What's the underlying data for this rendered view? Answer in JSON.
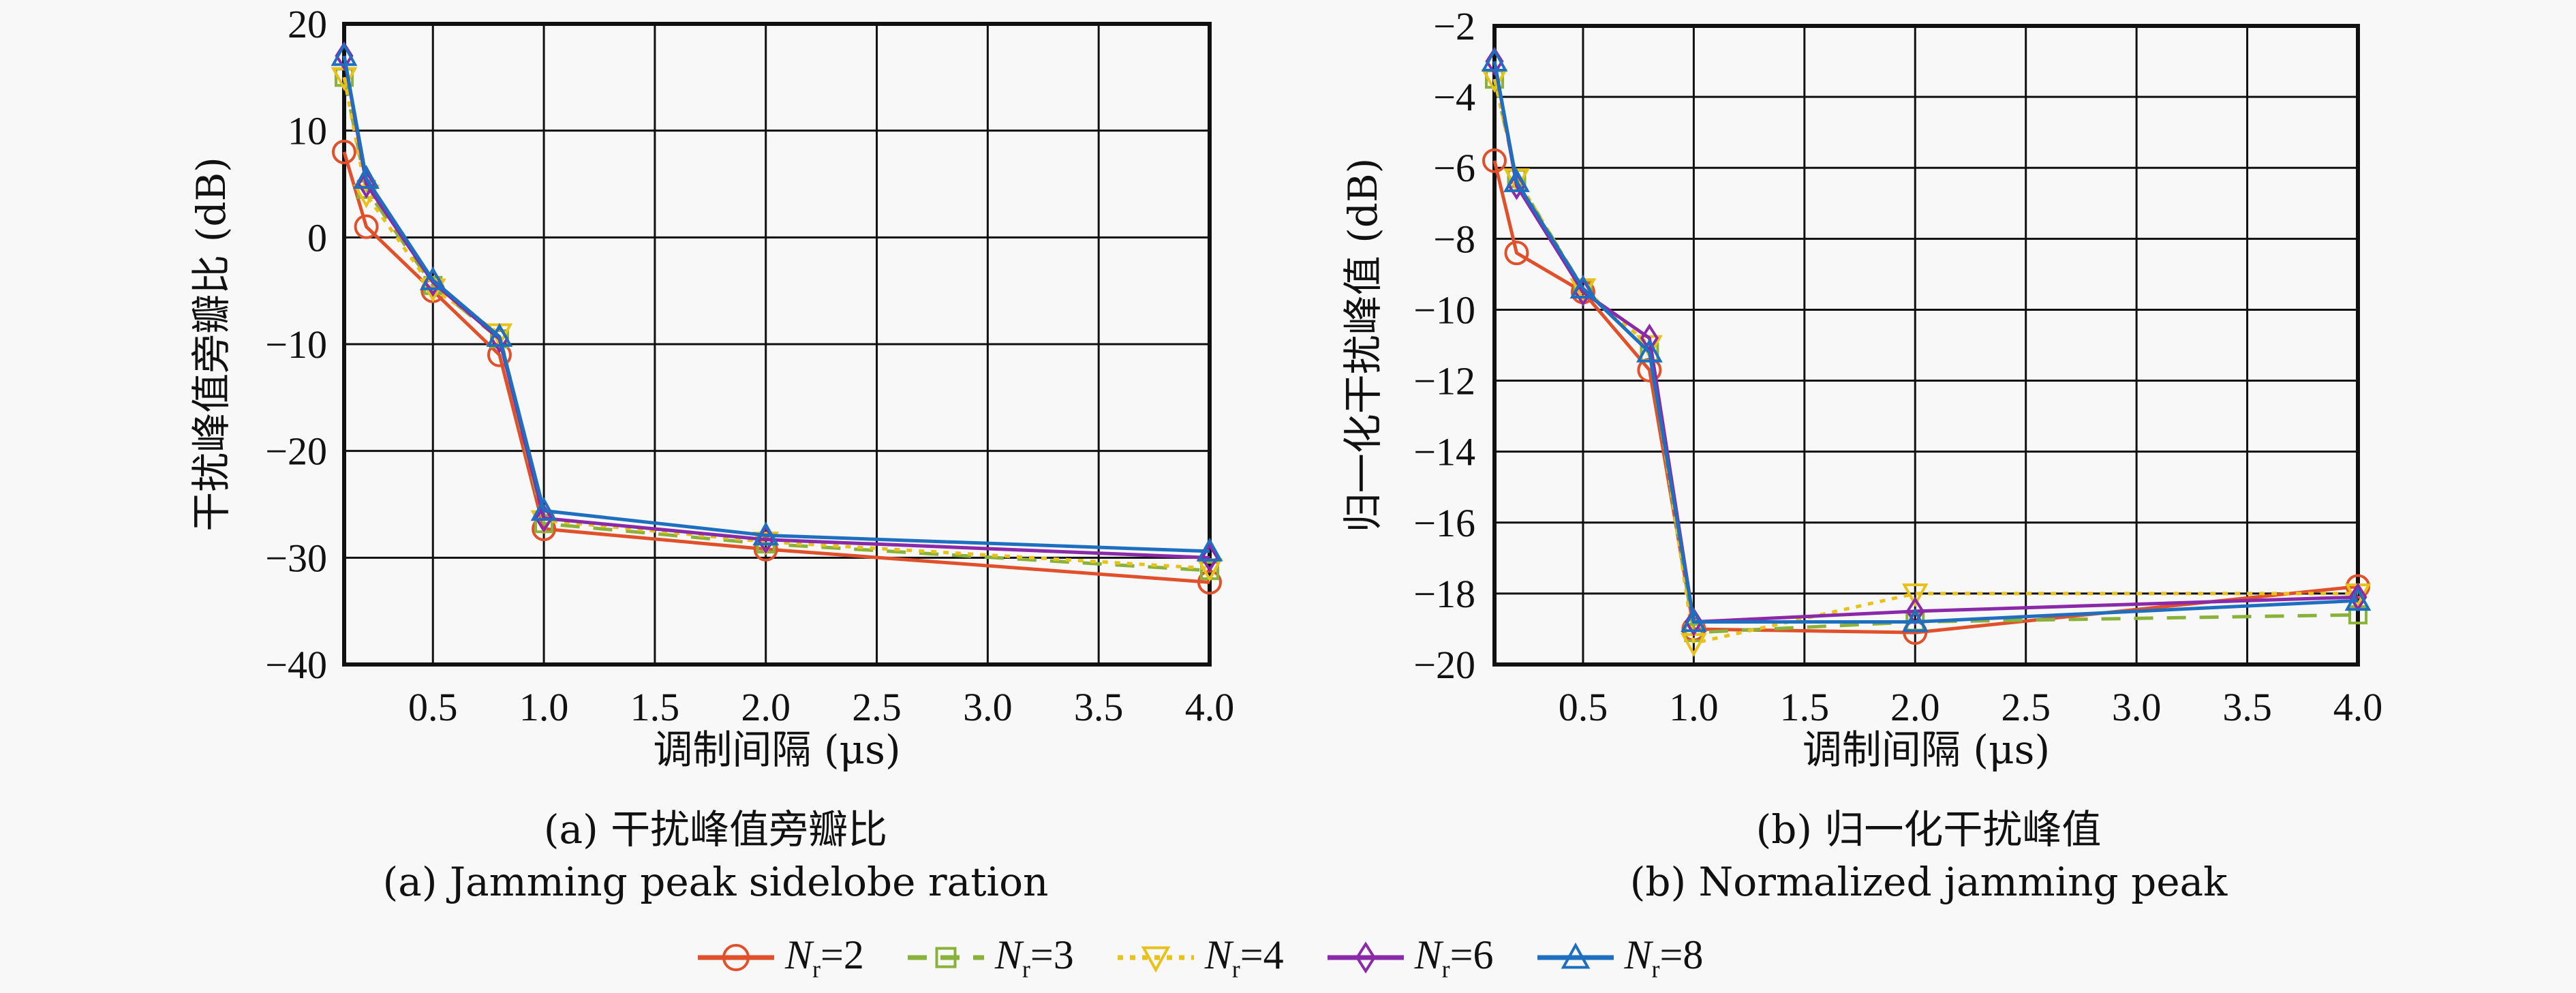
{
  "chart_data": [
    {
      "type": "line",
      "panel": "a",
      "title": "",
      "xlabel": "调制间隔 (μs)",
      "ylabel": "干扰峰值旁瓣比 (dB)",
      "xlim": [
        0.1,
        4.0
      ],
      "ylim": [
        -40,
        20
      ],
      "xticks": [
        0.5,
        1.0,
        1.5,
        2.0,
        2.5,
        3.0,
        3.5,
        4.0
      ],
      "xtick_labels": [
        "0.5",
        "1.0",
        "1.5",
        "2.0",
        "2.5",
        "3.0",
        "3.5",
        "4.0"
      ],
      "yticks": [
        20,
        10,
        0,
        -10,
        -20,
        -30,
        -40
      ],
      "ytick_labels": [
        "20",
        "10",
        "0",
        "−10",
        "−20",
        "−30",
        "−40"
      ],
      "grid": true,
      "x": [
        0.1,
        0.2,
        0.5,
        0.8,
        1.0,
        2.0,
        4.0
      ],
      "series": [
        {
          "name": "Nr=2",
          "values": [
            8.0,
            1.0,
            -5.0,
            -11.0,
            -27.3,
            -29.2,
            -32.3
          ]
        },
        {
          "name": "Nr=3",
          "values": [
            15.0,
            4.5,
            -4.5,
            -9.5,
            -26.8,
            -28.7,
            -31.2
          ]
        },
        {
          "name": "Nr=4",
          "values": [
            15.0,
            4.0,
            -4.8,
            -9.0,
            -26.5,
            -28.5,
            -31.0
          ]
        },
        {
          "name": "Nr=6",
          "values": [
            17.0,
            5.0,
            -4.2,
            -9.5,
            -26.3,
            -28.3,
            -30.0
          ]
        },
        {
          "name": "Nr=8",
          "values": [
            17.0,
            5.5,
            -4.0,
            -9.3,
            -25.6,
            -27.9,
            -29.4
          ]
        }
      ],
      "caption_cn": "(a) 干扰峰值旁瓣比",
      "caption_en": "(a) Jamming peak sidelobe ration"
    },
    {
      "type": "line",
      "panel": "b",
      "title": "",
      "xlabel": "调制间隔 (μs)",
      "ylabel": "归一化干扰峰值 (dB)",
      "xlim": [
        0.1,
        4.0
      ],
      "ylim": [
        -20,
        -2
      ],
      "xticks": [
        0.5,
        1.0,
        1.5,
        2.0,
        2.5,
        3.0,
        3.5,
        4.0
      ],
      "xtick_labels": [
        "0.5",
        "1.0",
        "1.5",
        "2.0",
        "2.5",
        "3.0",
        "3.5",
        "4.0"
      ],
      "yticks": [
        -2,
        -4,
        -6,
        -8,
        -10,
        -12,
        -14,
        -16,
        -18,
        -20
      ],
      "ytick_labels": [
        "−2",
        "−4",
        "−6",
        "−8",
        "−10",
        "−12",
        "−14",
        "−16",
        "−18",
        "−20"
      ],
      "grid": true,
      "x": [
        0.1,
        0.2,
        0.5,
        0.8,
        1.0,
        2.0,
        4.0
      ],
      "series": [
        {
          "name": "Nr=2",
          "values": [
            -5.8,
            -8.4,
            -9.5,
            -11.7,
            -19.0,
            -19.1,
            -17.8
          ]
        },
        {
          "name": "Nr=3",
          "values": [
            -3.5,
            -6.3,
            -9.4,
            -11.2,
            -19.1,
            -18.8,
            -18.6
          ]
        },
        {
          "name": "Nr=4",
          "values": [
            -3.5,
            -6.3,
            -9.4,
            -11.0,
            -19.4,
            -18.0,
            -18.0
          ]
        },
        {
          "name": "Nr=6",
          "values": [
            -3.0,
            -6.5,
            -9.5,
            -10.8,
            -18.8,
            -18.5,
            -18.1
          ]
        },
        {
          "name": "Nr=8",
          "values": [
            -3.0,
            -6.4,
            -9.4,
            -11.2,
            -18.8,
            -18.8,
            -18.2
          ]
        }
      ],
      "caption_cn": "(b) 归一化干扰峰值",
      "caption_en": "(b) Normalized jamming peak"
    }
  ],
  "legend": {
    "placement": "bottom-center",
    "items": [
      {
        "symbol": "N",
        "sub": "r",
        "eq": "=2",
        "color": "#e0502a",
        "marker": "circle",
        "dash": "solid"
      },
      {
        "symbol": "N",
        "sub": "r",
        "eq": "=3",
        "color": "#8ab23a",
        "marker": "square",
        "dash": "dashed"
      },
      {
        "symbol": "N",
        "sub": "r",
        "eq": "=4",
        "color": "#e8c21a",
        "marker": "triangle-down",
        "dash": "dotted"
      },
      {
        "symbol": "N",
        "sub": "r",
        "eq": "=6",
        "color": "#8a2aa8",
        "marker": "diamond",
        "dash": "solid"
      },
      {
        "symbol": "N",
        "sub": "r",
        "eq": "=8",
        "color": "#1f6fc0",
        "marker": "triangle-up",
        "dash": "solid"
      }
    ]
  }
}
